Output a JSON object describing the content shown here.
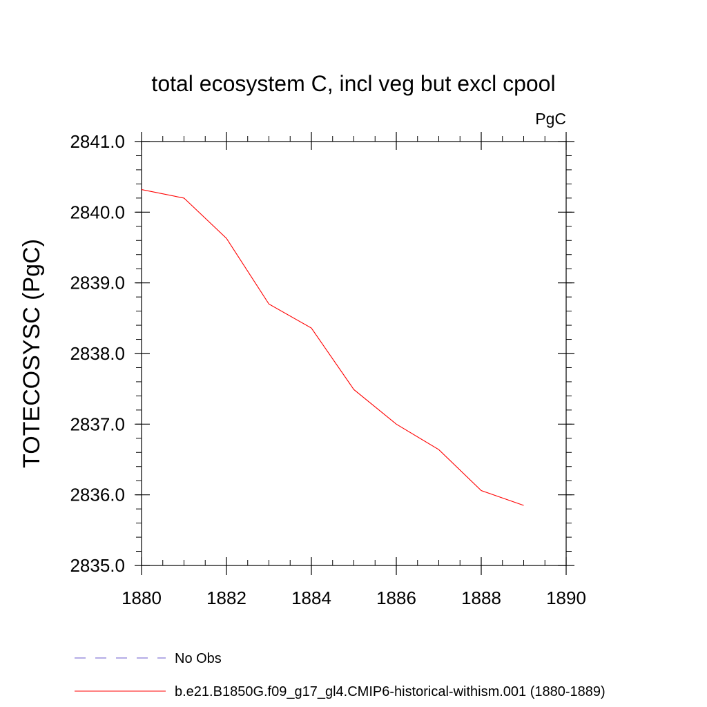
{
  "chart_data": {
    "type": "line",
    "title": "total ecosystem C, incl veg but excl cpool",
    "units_label": "PgC",
    "ylabel": "TOTECOSYSC  (PgC)",
    "xlabel": "",
    "xlim": [
      1880,
      1890
    ],
    "ylim": [
      2835.0,
      2841.0
    ],
    "x_ticks": [
      1880,
      1882,
      1884,
      1886,
      1888,
      1890
    ],
    "x_tick_labels": [
      "1880",
      "1882",
      "1884",
      "1886",
      "1888",
      "1890"
    ],
    "y_ticks": [
      2835.0,
      2836.0,
      2837.0,
      2838.0,
      2839.0,
      2840.0,
      2841.0
    ],
    "y_tick_labels": [
      "2835.0",
      "2836.0",
      "2837.0",
      "2838.0",
      "2839.0",
      "2840.0",
      "2841.0"
    ],
    "grid": false,
    "legend_position": "bottom",
    "series": [
      {
        "name": "No Obs",
        "color": "#6a5acd",
        "style": "dashed",
        "x": [],
        "values": []
      },
      {
        "name": "b.e21.B1850G.f09_g17_gl4.CMIP6-historical-withism.001 (1880-1889)",
        "color": "#ff0000",
        "style": "solid",
        "x": [
          1880,
          1881,
          1882,
          1883,
          1884,
          1885,
          1886,
          1887,
          1888,
          1889
        ],
        "values": [
          2840.32,
          2840.2,
          2839.63,
          2838.7,
          2838.36,
          2837.49,
          2837.0,
          2836.64,
          2836.06,
          2835.85
        ]
      }
    ]
  }
}
